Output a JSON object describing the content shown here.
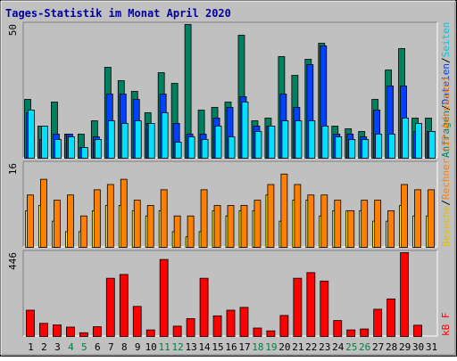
{
  "title": "Tages-Statistik im Monat April 2020",
  "colors": {
    "background": "#c0c0c0",
    "title_text": "#0000a0",
    "weekday_label": "#000000",
    "weekend_label": "#008040",
    "hits": "#008060",
    "files": "#0040ff",
    "pages": "#00e0ff",
    "visits": "#ffff00",
    "sites": "#ff8000",
    "kbytes": "#ff0000",
    "axis_label_sep": "#000000"
  },
  "right_labels": {
    "top": [
      {
        "text": "Anfragen",
        "color": "#008060"
      },
      {
        "text": "/",
        "color": "#000000"
      },
      {
        "text": "Dateien",
        "color": "#0040ff"
      },
      {
        "text": "/",
        "color": "#000000"
      },
      {
        "text": "Seiten",
        "color": "#00c8e0"
      }
    ],
    "middle": [
      {
        "text": "Besuche",
        "color": "#e0c000"
      },
      {
        "text": "/",
        "color": "#000000"
      },
      {
        "text": "Rechner (IP-Adressen)",
        "color": "#ff8000"
      }
    ],
    "bottom": [
      {
        "text": "kB F",
        "color": "#ff0000"
      }
    ]
  },
  "chart_data": [
    {
      "type": "bar",
      "panel": "top",
      "y_max_label": "50",
      "ylim": [
        0,
        50
      ],
      "categories": [
        "1",
        "2",
        "3",
        "4",
        "5",
        "6",
        "7",
        "8",
        "9",
        "10",
        "11",
        "12",
        "13",
        "14",
        "15",
        "16",
        "17",
        "18",
        "19",
        "20",
        "21",
        "22",
        "23",
        "24",
        "25",
        "26",
        "27",
        "28",
        "29",
        "30",
        "31"
      ],
      "weekend_days": [
        "4",
        "5",
        "11",
        "12",
        "18",
        "19",
        "25",
        "26"
      ],
      "series": [
        {
          "name": "Anfragen",
          "values": [
            22,
            12,
            21,
            9,
            9,
            14,
            34,
            29,
            25,
            17,
            32,
            28,
            50,
            18,
            19,
            21,
            46,
            14,
            15,
            38,
            31,
            37,
            43,
            12,
            11,
            10,
            22,
            33,
            41,
            15,
            15
          ]
        },
        {
          "name": "Dateien",
          "values": [
            17,
            7,
            9,
            9,
            4,
            8,
            24,
            24,
            22,
            13,
            24,
            13,
            9,
            9,
            15,
            19,
            23,
            12,
            12,
            24,
            19,
            35,
            42,
            9,
            9,
            8,
            18,
            27,
            27,
            10,
            10
          ]
        },
        {
          "name": "Seiten",
          "values": [
            18,
            12,
            7,
            8,
            4,
            7,
            14,
            13,
            14,
            13,
            17,
            6,
            8,
            7,
            12,
            8,
            21,
            10,
            12,
            14,
            14,
            14,
            12,
            8,
            7,
            7,
            9,
            9,
            15,
            13,
            10
          ]
        }
      ]
    },
    {
      "type": "bar",
      "panel": "middle",
      "y_max_label": "16",
      "ylim": [
        0,
        16
      ],
      "categories": [
        "1",
        "2",
        "3",
        "4",
        "5",
        "6",
        "7",
        "8",
        "9",
        "10",
        "11",
        "12",
        "13",
        "14",
        "15",
        "16",
        "17",
        "18",
        "19",
        "20",
        "21",
        "22",
        "23",
        "24",
        "25",
        "26",
        "27",
        "28",
        "29",
        "30",
        "31"
      ],
      "series": [
        {
          "name": "Besuche",
          "values": [
            7,
            8,
            5,
            3,
            3,
            7,
            8,
            8,
            7,
            6,
            7,
            3,
            2,
            3,
            7,
            6,
            7,
            7,
            10,
            5,
            9,
            9,
            6,
            7,
            7,
            7,
            5,
            5,
            8,
            6,
            6
          ]
        },
        {
          "name": "Rechner (IP-Adressen)",
          "values": [
            10,
            13,
            9,
            10,
            6,
            11,
            12,
            13,
            9,
            8,
            11,
            6,
            6,
            11,
            8,
            8,
            8,
            9,
            12,
            14,
            12,
            10,
            10,
            9,
            7,
            9,
            9,
            7,
            12,
            11,
            11
          ]
        }
      ]
    },
    {
      "type": "bar",
      "panel": "bottom",
      "y_max_label": "446",
      "ylim": [
        0,
        446
      ],
      "categories": [
        "1",
        "2",
        "3",
        "4",
        "5",
        "6",
        "7",
        "8",
        "9",
        "10",
        "11",
        "12",
        "13",
        "14",
        "15",
        "16",
        "17",
        "18",
        "19",
        "20",
        "21",
        "22",
        "23",
        "24",
        "25",
        "26",
        "27",
        "28",
        "29",
        "30",
        "31"
      ],
      "series": [
        {
          "name": "kB F",
          "values": [
            140,
            70,
            62,
            50,
            20,
            52,
            310,
            330,
            160,
            35,
            410,
            55,
            95,
            310,
            110,
            140,
            155,
            45,
            30,
            112,
            310,
            340,
            295,
            85,
            35,
            40,
            145,
            200,
            446,
            60,
            0
          ]
        }
      ]
    }
  ]
}
